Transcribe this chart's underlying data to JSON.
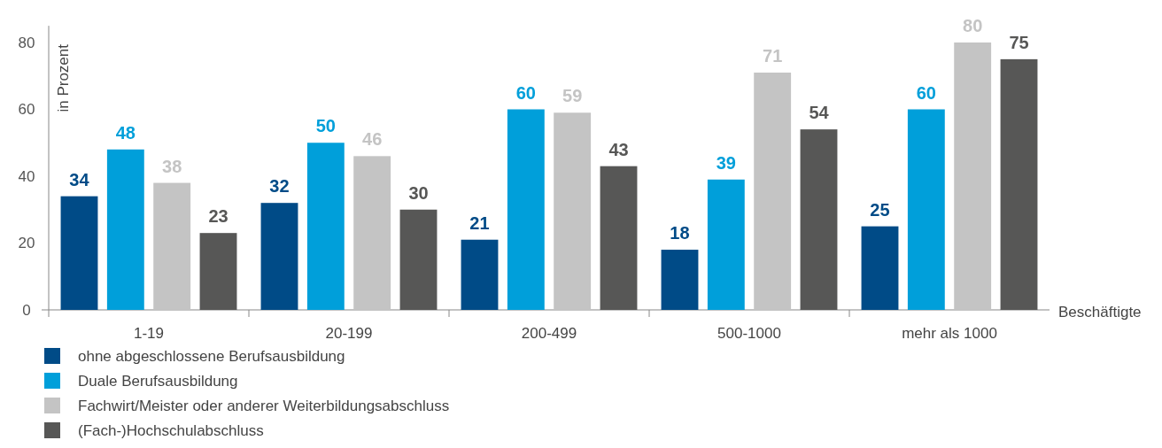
{
  "chart_data": {
    "type": "bar",
    "xlabel": "Beschäftigte",
    "ylabel": "in Prozent",
    "categories": [
      "1-19",
      "20-199",
      "200-499",
      "500-1000",
      "mehr als 1000"
    ],
    "series": [
      {
        "name": "ohne abgeschlossene Berufsausbildung",
        "color": "#004b87",
        "values": [
          34,
          32,
          21,
          18,
          25
        ]
      },
      {
        "name": "Duale Berufsausbildung",
        "color": "#009fda",
        "values": [
          48,
          50,
          60,
          39,
          60
        ]
      },
      {
        "name": "Fachwirt/Meister oder anderer Weiterbildungsabschluss",
        "color": "#c4c4c4",
        "values": [
          38,
          46,
          59,
          71,
          80
        ]
      },
      {
        "name": "(Fach-)Hochschulabschluss",
        "color": "#575756",
        "values": [
          23,
          30,
          43,
          54,
          75
        ]
      }
    ],
    "ylim": [
      0,
      85
    ],
    "yticks": [
      0,
      20,
      40,
      60,
      80
    ],
    "data_labels": true,
    "legend": "bottom",
    "grid": false
  }
}
